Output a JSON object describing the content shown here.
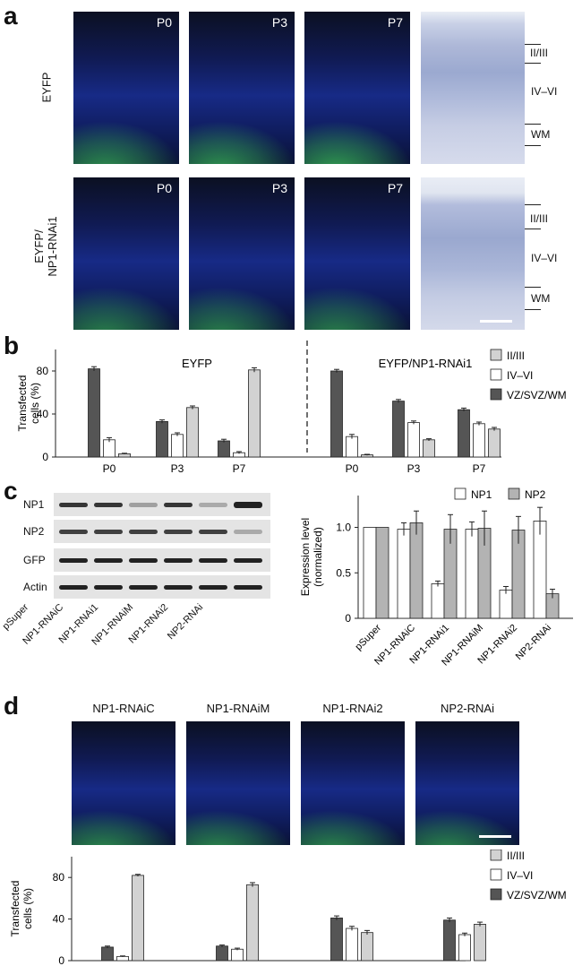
{
  "panel_letters": {
    "a": "a",
    "b": "b",
    "c": "c",
    "d": "d"
  },
  "colors": {
    "layer_II_III": "#d2d2d2",
    "layer_IV_VI": "#ffffff",
    "layer_VZ": "#555555",
    "NP1": "#ffffff",
    "NP2": "#b3b3b3",
    "tissue_green": "#3fcf5a",
    "tissue_blue": "#1d2d8c"
  },
  "panel_a": {
    "row_labels": [
      "EYFP",
      "EYFP/\nNP1-RNAi1"
    ],
    "timepoints": [
      "P0",
      "P3",
      "P7"
    ],
    "layer_labels": [
      "II/III",
      "IV–VI",
      "WM"
    ]
  },
  "panel_d": {
    "image_titles": [
      "NP1-RNAiC",
      "NP1-RNAiM",
      "NP1-RNAi2",
      "NP2-RNAi"
    ]
  },
  "panel_c": {
    "blot_rows": [
      "NP1",
      "NP2",
      "GFP",
      "Actin"
    ],
    "lanes": [
      "pSuper",
      "NP1-RNAiC",
      "NP1-RNAi1",
      "NP1-RNAiM",
      "NP1-RNAi2",
      "NP2-RNAi"
    ]
  },
  "chart_data": [
    {
      "id": "b",
      "type": "bar",
      "ylabel": "Transfected\ncells (%)",
      "ylim": [
        0,
        100
      ],
      "yticks": [
        0,
        40,
        80
      ],
      "group_titles": [
        "EYFP",
        "EYFP/NP1-RNAi1"
      ],
      "categories": [
        "P0",
        "P3",
        "P7",
        "P0",
        "P3",
        "P7"
      ],
      "legend": [
        "II/III",
        "IV–VI",
        "VZ/SVZ/WM"
      ],
      "legend_position": "right",
      "series": [
        {
          "name": "VZ/SVZ/WM",
          "color": "#555555",
          "values": [
            82,
            33,
            15,
            80,
            52,
            44
          ],
          "errors": [
            2,
            1.5,
            1.5,
            1.5,
            1.5,
            1.5
          ]
        },
        {
          "name": "IV–VI",
          "color": "#ffffff",
          "values": [
            16,
            21,
            4,
            19,
            32,
            31
          ],
          "errors": [
            2,
            1.5,
            1,
            2,
            1.5,
            1.5
          ]
        },
        {
          "name": "II/III",
          "color": "#d2d2d2",
          "values": [
            3,
            46,
            81,
            2,
            16,
            26
          ],
          "errors": [
            0.5,
            1.5,
            2,
            0.5,
            1,
            1.5
          ]
        }
      ]
    },
    {
      "id": "c",
      "type": "bar",
      "ylabel": "Expression level\n(normalized)",
      "ylim": [
        0,
        1.35
      ],
      "yticks": [
        0,
        0.5,
        1.0
      ],
      "ytick_labels": [
        "0",
        "0.5",
        "1.0"
      ],
      "categories": [
        "pSuper",
        "NP1-RNAiC",
        "NP1-RNAi1",
        "NP1-RNAiM",
        "NP1-RNAi2",
        "NP2-RNAi"
      ],
      "legend": [
        "NP1",
        "NP2"
      ],
      "legend_position": "top-right",
      "series": [
        {
          "name": "NP1",
          "color": "#ffffff",
          "values": [
            1.0,
            0.98,
            0.38,
            0.98,
            0.31,
            1.07
          ],
          "errors": [
            0,
            0.07,
            0.03,
            0.08,
            0.04,
            0.15
          ]
        },
        {
          "name": "NP2",
          "color": "#b3b3b3",
          "values": [
            1.0,
            1.05,
            0.98,
            0.99,
            0.97,
            0.27
          ],
          "errors": [
            0,
            0.13,
            0.16,
            0.19,
            0.15,
            0.05
          ]
        }
      ]
    },
    {
      "id": "d",
      "type": "bar",
      "ylabel": "Transfected\ncells (%)",
      "ylim": [
        0,
        100
      ],
      "yticks": [
        0,
        40,
        80
      ],
      "categories": [
        "NP1-RNAiC",
        "NP1-RNAiM",
        "NP1-RNAi2",
        "NP2-RNAi"
      ],
      "legend": [
        "II/III",
        "IV–VI",
        "VZ/SVZ/WM"
      ],
      "legend_position": "top-right",
      "series": [
        {
          "name": "VZ/SVZ/WM",
          "color": "#555555",
          "values": [
            13,
            14,
            41,
            39
          ],
          "errors": [
            1,
            1,
            2,
            2
          ]
        },
        {
          "name": "IV–VI",
          "color": "#ffffff",
          "values": [
            4,
            11,
            31,
            25
          ],
          "errors": [
            0.5,
            1,
            2,
            1.5
          ]
        },
        {
          "name": "II/III",
          "color": "#d2d2d2",
          "values": [
            82,
            73,
            27,
            35
          ],
          "errors": [
            1,
            2,
            2,
            2
          ]
        }
      ]
    }
  ]
}
